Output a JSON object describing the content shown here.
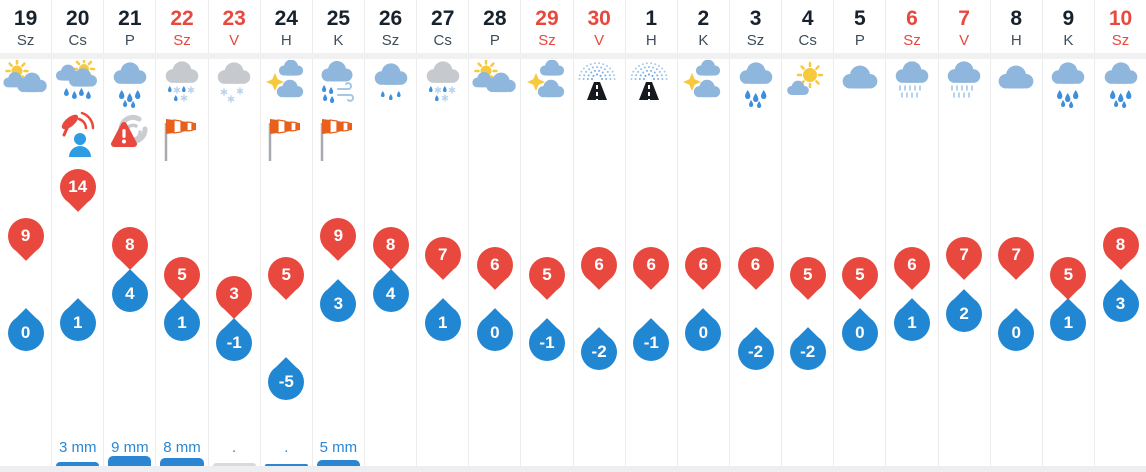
{
  "widget": "10-day-weather-forecast",
  "colors": {
    "accent_red": "#e8483e",
    "accent_blue": "#2187d2",
    "bar_blue": "#2a86d3",
    "bar_gray": "#d9dadc",
    "day_text": "#17222c",
    "dow_text": "#3e4d5a"
  },
  "columns": [
    {
      "day": "19",
      "dow": "Sz",
      "weekend": false,
      "icon": "sun-clouds",
      "warn": null,
      "high": 9,
      "low": 0,
      "precip": null
    },
    {
      "day": "20",
      "dow": "Cs",
      "weekend": false,
      "icon": "sun-cloud-rain",
      "warn": "alert",
      "high": 14,
      "low": 1,
      "precip": {
        "label": "3 mm",
        "bar": 4,
        "gray": false
      }
    },
    {
      "day": "21",
      "dow": "P",
      "weekend": false,
      "icon": "cloud-rain",
      "warn": "storm",
      "high": 8,
      "low": 4,
      "precip": {
        "label": "9 mm",
        "bar": 10,
        "gray": false
      }
    },
    {
      "day": "22",
      "dow": "Sz",
      "weekend": true,
      "icon": "cloud-sleet",
      "warn": "windsock",
      "high": 5,
      "low": 1,
      "precip": {
        "label": "8 mm",
        "bar": 8,
        "gray": false
      }
    },
    {
      "day": "23",
      "dow": "V",
      "weekend": true,
      "icon": "cloud-snow",
      "warn": null,
      "high": 3,
      "low": -1,
      "precip": {
        "label": ".",
        "bar": 3,
        "gray": true
      }
    },
    {
      "day": "24",
      "dow": "H",
      "weekend": false,
      "icon": "sun-between-clouds",
      "warn": "windsock",
      "high": 5,
      "low": -5,
      "precip": {
        "label": ".",
        "bar": 2,
        "gray": false
      }
    },
    {
      "day": "25",
      "dow": "K",
      "weekend": false,
      "icon": "cloud-rain-wind",
      "warn": "windsock",
      "high": 9,
      "low": 3,
      "precip": {
        "label": "5 mm",
        "bar": 6,
        "gray": false
      }
    },
    {
      "day": "26",
      "dow": "Sz",
      "weekend": false,
      "icon": "cloud-light-rain",
      "warn": null,
      "high": 8,
      "low": 4,
      "precip": null
    },
    {
      "day": "27",
      "dow": "Cs",
      "weekend": false,
      "icon": "cloud-sleet",
      "warn": null,
      "high": 7,
      "low": 1,
      "precip": null
    },
    {
      "day": "28",
      "dow": "P",
      "weekend": false,
      "icon": "sun-clouds",
      "warn": null,
      "high": 6,
      "low": 0,
      "precip": null
    },
    {
      "day": "29",
      "dow": "Sz",
      "weekend": true,
      "icon": "sun-between-clouds",
      "warn": null,
      "high": 5,
      "low": -1,
      "precip": null
    },
    {
      "day": "30",
      "dow": "V",
      "weekend": true,
      "icon": "fog",
      "warn": null,
      "high": 6,
      "low": -2,
      "precip": null
    },
    {
      "day": "1",
      "dow": "H",
      "weekend": false,
      "icon": "fog",
      "warn": null,
      "high": 6,
      "low": -1,
      "precip": null
    },
    {
      "day": "2",
      "dow": "K",
      "weekend": false,
      "icon": "sun-between-clouds",
      "warn": null,
      "high": 6,
      "low": 0,
      "precip": null
    },
    {
      "day": "3",
      "dow": "Sz",
      "weekend": false,
      "icon": "cloud-rain",
      "warn": null,
      "high": 6,
      "low": -2,
      "precip": null
    },
    {
      "day": "4",
      "dow": "Cs",
      "weekend": false,
      "icon": "sun-small-cloud",
      "warn": null,
      "high": 5,
      "low": -2,
      "precip": null
    },
    {
      "day": "5",
      "dow": "P",
      "weekend": false,
      "icon": "cloud",
      "warn": null,
      "high": 5,
      "low": 0,
      "precip": null
    },
    {
      "day": "6",
      "dow": "Sz",
      "weekend": true,
      "icon": "cloud-drizzle",
      "warn": null,
      "high": 6,
      "low": 1,
      "precip": null
    },
    {
      "day": "7",
      "dow": "V",
      "weekend": true,
      "icon": "cloud-drizzle",
      "warn": null,
      "high": 7,
      "low": 2,
      "precip": null
    },
    {
      "day": "8",
      "dow": "H",
      "weekend": false,
      "icon": "cloud",
      "warn": null,
      "high": 7,
      "low": 0,
      "precip": null
    },
    {
      "day": "9",
      "dow": "K",
      "weekend": false,
      "icon": "cloud-rain",
      "warn": null,
      "high": 5,
      "low": 1,
      "precip": null
    },
    {
      "day": "10",
      "dow": "Sz",
      "weekend": true,
      "icon": "cloud-rain",
      "warn": null,
      "high": 8,
      "low": 3,
      "precip": null
    }
  ]
}
